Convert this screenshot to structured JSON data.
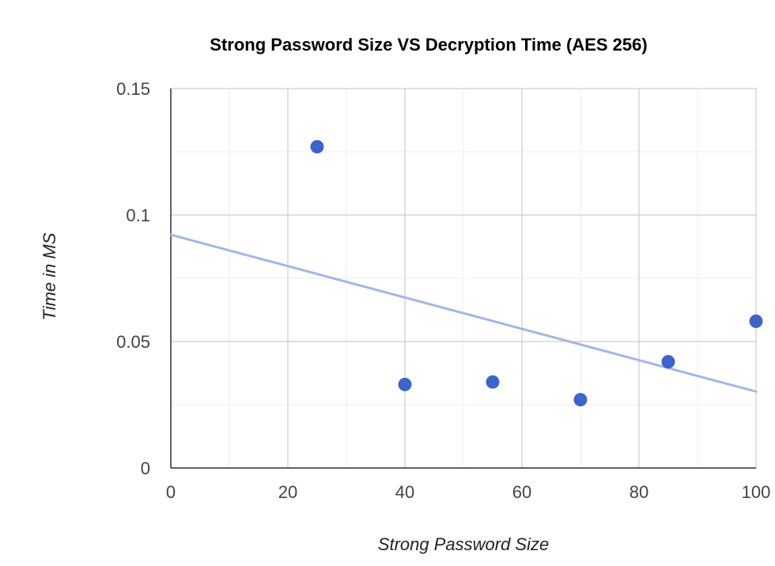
{
  "chart_data": {
    "type": "scatter",
    "title": "Strong Password Size VS Decryption Time (AES 256)",
    "xlabel": "Strong Password Size",
    "ylabel": "Time in MS",
    "xlim": [
      0,
      100
    ],
    "ylim": [
      0,
      0.15
    ],
    "x_ticks": [
      0,
      20,
      40,
      60,
      80,
      100
    ],
    "x_tick_labels": [
      "0",
      "20",
      "40",
      "60",
      "80",
      "100"
    ],
    "y_ticks": [
      0,
      0.05,
      0.1,
      0.15
    ],
    "y_tick_labels": [
      "0",
      "0.05",
      "0.1",
      "0.15"
    ],
    "x_minor_step": 10,
    "y_minor_step": 0.025,
    "grid": true,
    "series": [
      {
        "x": [
          25,
          40,
          55,
          70,
          85,
          100
        ],
        "y": [
          0.127,
          0.033,
          0.034,
          0.027,
          0.042,
          0.058
        ],
        "color": "#3d64c8"
      }
    ],
    "trendline": {
      "type": "linear",
      "x": [
        0,
        100
      ],
      "y": [
        0.0922,
        0.0302
      ],
      "color": "#a4b6e6"
    }
  }
}
